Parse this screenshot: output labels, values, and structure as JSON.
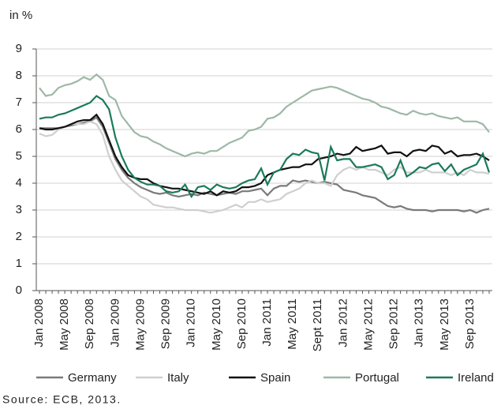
{
  "chart_data": {
    "type": "line",
    "y_label": "in %",
    "source": "Source: ECB, 2013.",
    "categories": [
      "Jan 2008",
      null,
      null,
      null,
      "May 2008",
      null,
      null,
      null,
      "Sep 2008",
      null,
      null,
      null,
      "Jan 2009",
      null,
      null,
      null,
      "May 2009",
      null,
      null,
      null,
      "Sep 2009",
      null,
      null,
      null,
      "Jan 2010",
      null,
      null,
      null,
      "May 2010",
      null,
      null,
      null,
      "Sep 2010",
      null,
      null,
      null,
      "Jan 2011",
      null,
      null,
      null,
      "May 2011",
      null,
      null,
      null,
      "Sept 2011",
      null,
      null,
      null,
      "Jan 2012",
      null,
      null,
      null,
      "May 2012",
      null,
      null,
      null,
      "Sep 2012",
      null,
      null,
      null,
      "Jan 2013",
      null,
      null,
      null,
      "May 2013",
      null,
      null,
      null,
      "Sep 2013",
      null,
      null,
      null
    ],
    "ylim": [
      0,
      9
    ],
    "yticks": [
      0,
      1,
      2,
      3,
      4,
      5,
      6,
      7,
      8,
      9
    ],
    "grid": true,
    "series": [
      {
        "name": "Germany",
        "color": "#7a7a7a",
        "values": [
          6.05,
          6.05,
          6.05,
          6.05,
          6.1,
          6.15,
          6.2,
          6.25,
          6.3,
          6.45,
          6.1,
          5.5,
          4.9,
          4.5,
          4.2,
          4.0,
          3.85,
          3.75,
          3.65,
          3.6,
          3.65,
          3.55,
          3.5,
          3.55,
          3.6,
          3.55,
          3.65,
          3.6,
          3.55,
          3.6,
          3.65,
          3.6,
          3.7,
          3.7,
          3.75,
          3.8,
          3.55,
          3.8,
          3.9,
          3.9,
          4.1,
          4.05,
          4.1,
          4.05,
          4.0,
          4.05,
          4.0,
          3.95,
          3.75,
          3.7,
          3.65,
          3.55,
          3.5,
          3.45,
          3.3,
          3.15,
          3.1,
          3.15,
          3.05,
          3.0,
          3.0,
          3.0,
          2.95,
          3.0,
          3.0,
          3.0,
          3.0,
          2.95,
          3.0,
          2.9,
          3.0,
          3.05
        ]
      },
      {
        "name": "Italy",
        "color": "#cfcfcf",
        "values": [
          5.85,
          5.75,
          5.8,
          6.0,
          6.1,
          6.2,
          6.2,
          6.2,
          6.3,
          6.2,
          5.8,
          5.0,
          4.5,
          4.1,
          3.9,
          3.7,
          3.5,
          3.4,
          3.2,
          3.15,
          3.1,
          3.1,
          3.05,
          3.0,
          3.0,
          3.0,
          2.95,
          2.9,
          2.95,
          3.0,
          3.1,
          3.2,
          3.1,
          3.3,
          3.3,
          3.4,
          3.3,
          3.35,
          3.4,
          3.6,
          3.7,
          3.8,
          4.0,
          4.1,
          4.0,
          4.0,
          3.9,
          4.3,
          4.5,
          4.6,
          4.5,
          4.6,
          4.5,
          4.5,
          4.4,
          4.3,
          4.5,
          4.6,
          4.4,
          4.4,
          4.4,
          4.5,
          4.4,
          4.4,
          4.4,
          4.3,
          4.4,
          4.3,
          4.5,
          4.4,
          4.4,
          4.35
        ]
      },
      {
        "name": "Spain",
        "color": "#111111",
        "values": [
          6.05,
          6.0,
          6.0,
          6.05,
          6.1,
          6.2,
          6.3,
          6.35,
          6.35,
          6.55,
          6.2,
          5.6,
          5.0,
          4.6,
          4.3,
          4.2,
          4.15,
          4.15,
          4.0,
          3.9,
          3.85,
          3.8,
          3.8,
          3.75,
          3.7,
          3.65,
          3.6,
          3.7,
          3.55,
          3.7,
          3.65,
          3.7,
          3.85,
          3.85,
          3.9,
          4.0,
          4.3,
          4.4,
          4.5,
          4.55,
          4.6,
          4.6,
          4.7,
          4.7,
          4.9,
          4.95,
          5.0,
          5.1,
          5.05,
          5.1,
          5.35,
          5.2,
          5.25,
          5.3,
          5.4,
          5.1,
          5.15,
          5.15,
          5.0,
          5.2,
          5.25,
          5.2,
          5.4,
          5.35,
          5.1,
          5.2,
          5.0,
          5.05,
          5.05,
          5.1,
          5.0,
          4.85
        ]
      },
      {
        "name": "Portugal",
        "color": "#9db8a6",
        "values": [
          7.55,
          7.25,
          7.3,
          7.55,
          7.65,
          7.7,
          7.8,
          7.95,
          7.85,
          8.05,
          7.85,
          7.25,
          7.1,
          6.5,
          6.2,
          5.9,
          5.75,
          5.7,
          5.55,
          5.45,
          5.3,
          5.2,
          5.1,
          5.0,
          5.1,
          5.15,
          5.1,
          5.2,
          5.2,
          5.35,
          5.5,
          5.6,
          5.7,
          5.95,
          6.0,
          6.1,
          6.4,
          6.45,
          6.6,
          6.85,
          7.0,
          7.15,
          7.3,
          7.45,
          7.5,
          7.55,
          7.6,
          7.55,
          7.45,
          7.35,
          7.25,
          7.15,
          7.1,
          7.0,
          6.85,
          6.8,
          6.7,
          6.6,
          6.55,
          6.7,
          6.6,
          6.55,
          6.6,
          6.5,
          6.45,
          6.4,
          6.45,
          6.3,
          6.3,
          6.3,
          6.2,
          5.9
        ]
      },
      {
        "name": "Ireland",
        "color": "#1b7a5a",
        "values": [
          6.4,
          6.45,
          6.45,
          6.55,
          6.6,
          6.7,
          6.8,
          6.9,
          7.0,
          7.25,
          7.1,
          6.75,
          5.7,
          5.0,
          4.5,
          4.2,
          4.05,
          3.95,
          3.95,
          3.9,
          3.7,
          3.65,
          3.7,
          3.95,
          3.5,
          3.85,
          3.9,
          3.75,
          3.95,
          3.85,
          3.8,
          3.85,
          4.0,
          4.1,
          4.15,
          4.55,
          3.95,
          4.4,
          4.5,
          4.9,
          5.1,
          5.05,
          5.25,
          5.15,
          5.1,
          4.1,
          5.35,
          4.85,
          4.9,
          4.9,
          4.6,
          4.6,
          4.65,
          4.7,
          4.6,
          4.15,
          4.3,
          4.85,
          4.25,
          4.4,
          4.6,
          4.55,
          4.7,
          4.75,
          4.45,
          4.7,
          4.3,
          4.5,
          4.6,
          4.7,
          5.1,
          4.4
        ]
      }
    ]
  }
}
